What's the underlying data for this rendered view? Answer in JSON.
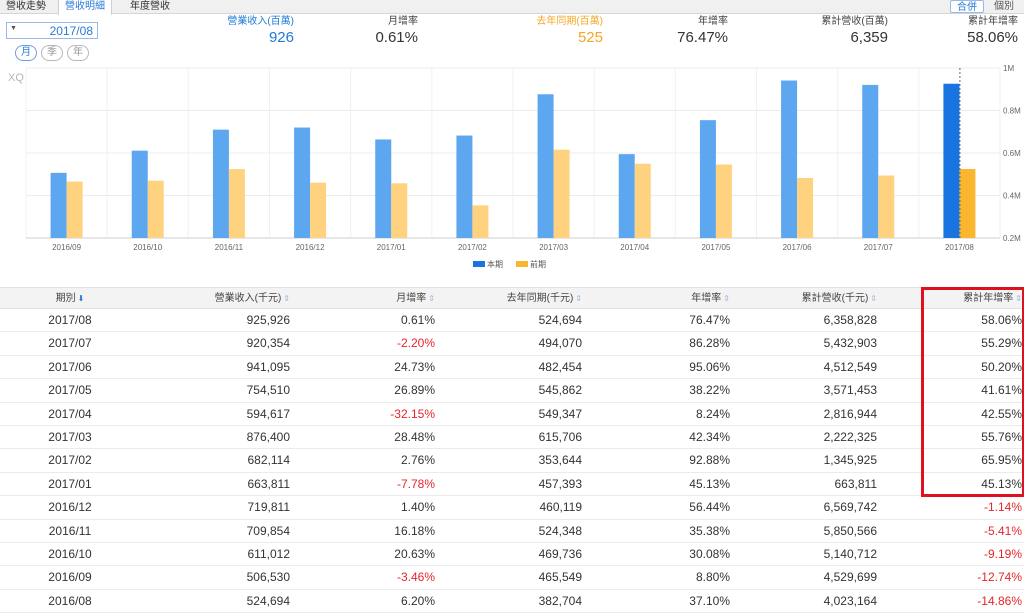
{
  "tabs": [
    "營收走勢",
    "營收明細",
    "年度營收"
  ],
  "active_tab": 1,
  "tab_right": [
    "合併",
    "個別"
  ],
  "date_select": {
    "caret": "▼",
    "value": "2017/08"
  },
  "period_buttons": [
    "月",
    "季",
    "年"
  ],
  "summary": [
    {
      "label": "營業收入(百萬)",
      "value": "926",
      "style": "blue"
    },
    {
      "label": "月增率",
      "value": "0.61%",
      "style": ""
    },
    {
      "label": "去年同期(百萬)",
      "value": "525",
      "style": "orange"
    },
    {
      "label": "年增率",
      "value": "76.47%",
      "style": ""
    },
    {
      "label": "累計營收(百萬)",
      "value": "6,359",
      "style": ""
    },
    {
      "label": "累計年增率",
      "value": "58.06%",
      "style": ""
    }
  ],
  "chart_data": {
    "type": "bar",
    "watermark": "XQ",
    "categories": [
      "2016/09",
      "2016/10",
      "2016/11",
      "2016/12",
      "2017/01",
      "2017/02",
      "2017/03",
      "2017/04",
      "2017/05",
      "2017/06",
      "2017/07",
      "2017/08"
    ],
    "series": [
      {
        "name": "本期",
        "color": "#5da6f0",
        "highlight_color": "#1874e0",
        "values": [
          506530,
          611012,
          709854,
          719811,
          663811,
          682114,
          876400,
          594617,
          754510,
          941095,
          920354,
          925926
        ]
      },
      {
        "name": "前期",
        "color": "#ffd27f",
        "highlight_color": "#f9b62e",
        "values": [
          465549,
          469736,
          524348,
          460119,
          457393,
          353644,
          615706,
          549347,
          545862,
          482454,
          494070,
          524694
        ]
      }
    ],
    "ylim": [
      200000,
      1000000
    ],
    "yticks": [
      {
        "value": 200000,
        "label": "0.2M"
      },
      {
        "value": 400000,
        "label": "0.4M"
      },
      {
        "value": 600000,
        "label": "0.6M"
      },
      {
        "value": 800000,
        "label": "0.8M"
      },
      {
        "value": 1000000,
        "label": "1M"
      }
    ],
    "highlight_index": 11,
    "legend": "bottom-center"
  },
  "table": {
    "headers": [
      "期別",
      "營業收入(千元)",
      "月增率",
      "去年同期(千元)",
      "年增率",
      "累計營收(千元)",
      "累計年增率"
    ],
    "sort_glyph": "⇕",
    "sort_active_glyph": "⬇",
    "rows": [
      [
        "2017/08",
        "925,926",
        "0.61%",
        "524,694",
        "76.47%",
        "6,358,828",
        "58.06%"
      ],
      [
        "2017/07",
        "920,354",
        "-2.20%",
        "494,070",
        "86.28%",
        "5,432,903",
        "55.29%"
      ],
      [
        "2017/06",
        "941,095",
        "24.73%",
        "482,454",
        "95.06%",
        "4,512,549",
        "50.20%"
      ],
      [
        "2017/05",
        "754,510",
        "26.89%",
        "545,862",
        "38.22%",
        "3,571,453",
        "41.61%"
      ],
      [
        "2017/04",
        "594,617",
        "-32.15%",
        "549,347",
        "8.24%",
        "2,816,944",
        "42.55%"
      ],
      [
        "2017/03",
        "876,400",
        "28.48%",
        "615,706",
        "42.34%",
        "2,222,325",
        "55.76%"
      ],
      [
        "2017/02",
        "682,114",
        "2.76%",
        "353,644",
        "92.88%",
        "1,345,925",
        "65.95%"
      ],
      [
        "2017/01",
        "663,811",
        "-7.78%",
        "457,393",
        "45.13%",
        "663,811",
        "45.13%"
      ],
      [
        "2016/12",
        "719,811",
        "1.40%",
        "460,119",
        "56.44%",
        "6,569,742",
        "-1.14%"
      ],
      [
        "2016/11",
        "709,854",
        "16.18%",
        "524,348",
        "35.38%",
        "5,850,566",
        "-5.41%"
      ],
      [
        "2016/10",
        "611,012",
        "20.63%",
        "469,736",
        "30.08%",
        "5,140,712",
        "-9.19%"
      ],
      [
        "2016/09",
        "506,530",
        "-3.46%",
        "465,549",
        "8.80%",
        "4,529,699",
        "-12.74%"
      ],
      [
        "2016/08",
        "524,694",
        "6.20%",
        "382,704",
        "37.10%",
        "4,023,164",
        "-14.86%"
      ]
    ]
  }
}
